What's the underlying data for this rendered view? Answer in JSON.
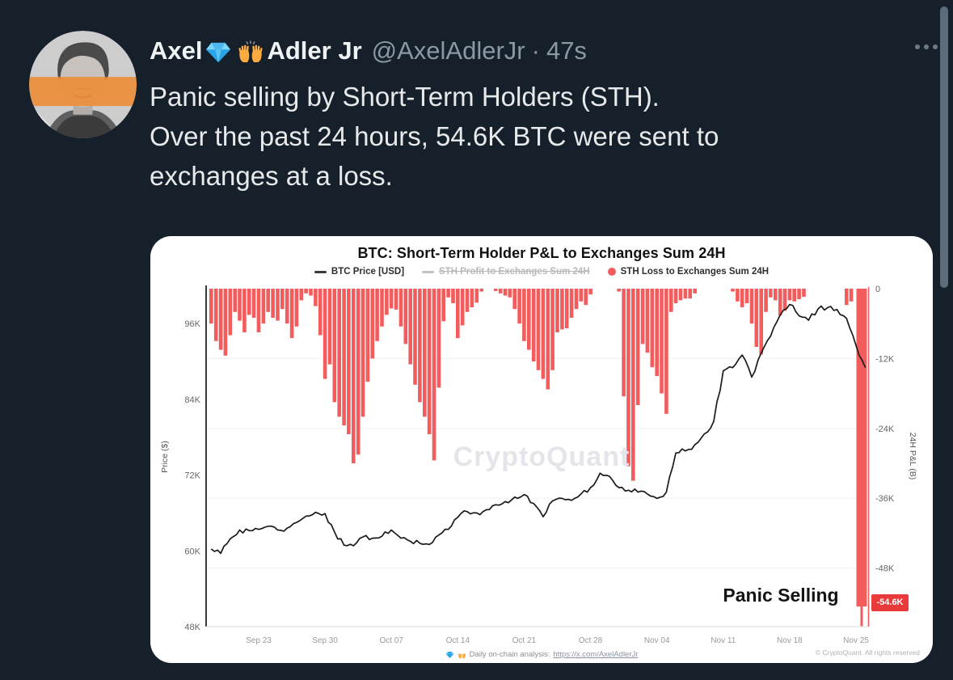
{
  "page": {
    "background": "#15202b"
  },
  "tweet": {
    "display_name_first": "Axel",
    "display_name_rest": "Adler Jr",
    "handle": "@AxelAdlerJr",
    "separator": "·",
    "timestamp": "47s",
    "body_lines": [
      "Panic selling by Short-Term Holders (STH).",
      "Over the past 24 hours, 54.6K BTC were sent to",
      "exchanges at a loss."
    ]
  },
  "chart_data": {
    "type": "bar+line",
    "title": "BTC: Short-Term Holder P&L to Exchanges Sum 24H",
    "legend": [
      {
        "label": "BTC Price [USD]",
        "marker": "dash",
        "color": "#3a3a3a",
        "disabled": false
      },
      {
        "label": "STH Profit to Exchanges Sum 24H",
        "marker": "dash",
        "color": "#c2c2c2",
        "disabled": true
      },
      {
        "label": "STH Loss to Exchanges Sum 24H",
        "marker": "dot",
        "color": "#f25c5c",
        "disabled": false
      }
    ],
    "left_axis": {
      "title": "Price ($)",
      "ticks": [
        {
          "label": "96K",
          "value": 96
        },
        {
          "label": "84K",
          "value": 84
        },
        {
          "label": "72K",
          "value": 72
        },
        {
          "label": "60K",
          "value": 60
        },
        {
          "label": "48K",
          "value": 48
        }
      ]
    },
    "right_axis": {
      "title": "24H P&L (B)",
      "ticks": [
        {
          "label": "0",
          "value": 0
        },
        {
          "label": "-12K",
          "value": -12
        },
        {
          "label": "-24K",
          "value": -24
        },
        {
          "label": "-36K",
          "value": -36
        },
        {
          "label": "-48K",
          "value": -48
        }
      ]
    },
    "x_axis": {
      "start_date": "Sep 18",
      "labels": [
        {
          "label": "Sep 23",
          "day": 5
        },
        {
          "label": "Sep 30",
          "day": 12
        },
        {
          "label": "Oct 07",
          "day": 19
        },
        {
          "label": "Oct 14",
          "day": 26
        },
        {
          "label": "Oct 21",
          "day": 33
        },
        {
          "label": "Oct 28",
          "day": 40
        },
        {
          "label": "Nov 04",
          "day": 47
        },
        {
          "label": "Nov 11",
          "day": 54
        },
        {
          "label": "Nov 18",
          "day": 61
        },
        {
          "label": "Nov 25",
          "day": 68
        }
      ]
    },
    "price_line": {
      "name": "BTC Price [USD]",
      "unit": "K USD per day from Sep 18",
      "values_by_day": [
        60.3,
        59.6,
        61.9,
        63.3,
        63.2,
        63.4,
        63.9,
        63.3,
        63.6,
        64.5,
        65.5,
        66.1,
        65.9,
        63.0,
        60.9,
        60.8,
        62.2,
        62.0,
        62.3,
        63.3,
        62.0,
        61.5,
        61.2,
        61.0,
        62.5,
        63.4,
        65.3,
        66.2,
        66.0,
        66.5,
        67.3,
        67.8,
        68.5,
        68.9,
        67.5,
        65.4,
        67.9,
        68.3,
        68.0,
        69.0,
        70.0,
        72.3,
        71.8,
        70.0,
        69.6,
        69.3,
        69.0,
        68.3,
        69.3,
        75.5,
        75.8,
        76.8,
        78.5,
        80.5,
        88.5,
        89.0,
        91.0,
        87.5,
        91.3,
        94.0,
        97.3,
        99.0,
        97.2,
        96.5,
        98.3,
        98.5,
        98.2,
        96.8,
        92.5,
        89.0
      ]
    },
    "loss_bars": {
      "name": "STH Loss to Exchanges Sum 24H",
      "unit": "K BTC, [day, value] half-day steps",
      "points": [
        [
          0,
          -6
        ],
        [
          0.5,
          -9
        ],
        [
          1,
          -10.5
        ],
        [
          1.5,
          -11.5
        ],
        [
          2,
          -8
        ],
        [
          2.5,
          -4
        ],
        [
          3,
          -5.5
        ],
        [
          3.5,
          -7.5
        ],
        [
          4,
          -4.5
        ],
        [
          4.5,
          -5
        ],
        [
          5,
          -7.5
        ],
        [
          5.5,
          -6
        ],
        [
          6,
          -4
        ],
        [
          6.5,
          -5
        ],
        [
          7,
          -5.5
        ],
        [
          7.5,
          -3.5
        ],
        [
          8,
          -6
        ],
        [
          8.5,
          -8.5
        ],
        [
          9,
          -6.5
        ],
        [
          9.5,
          -2
        ],
        [
          10,
          -0.8
        ],
        [
          10.5,
          -1.2
        ],
        [
          11,
          -3
        ],
        [
          11.5,
          -8
        ],
        [
          12,
          -15.5
        ],
        [
          12.5,
          -13
        ],
        [
          13,
          -19.5
        ],
        [
          13.5,
          -22
        ],
        [
          14,
          -23.5
        ],
        [
          14.5,
          -25
        ],
        [
          15,
          -30
        ],
        [
          15.5,
          -28.5
        ],
        [
          16,
          -22
        ],
        [
          16.5,
          -16
        ],
        [
          17,
          -12
        ],
        [
          17.5,
          -9
        ],
        [
          18,
          -6.5
        ],
        [
          18.5,
          -4.5
        ],
        [
          19,
          -3.4
        ],
        [
          19.5,
          -3.6
        ],
        [
          20,
          -6.5
        ],
        [
          20.5,
          -9.5
        ],
        [
          21,
          -13
        ],
        [
          21.5,
          -16.5
        ],
        [
          22,
          -19.5
        ],
        [
          22.5,
          -22
        ],
        [
          23,
          -25
        ],
        [
          23.5,
          -29.5
        ],
        [
          24,
          -17
        ],
        [
          24.5,
          -5.6
        ],
        [
          25,
          -1.5
        ],
        [
          25.5,
          -2.5
        ],
        [
          26,
          -8.5
        ],
        [
          26.5,
          -6.3
        ],
        [
          27,
          -4
        ],
        [
          27.5,
          -3.2
        ],
        [
          28,
          -2.4
        ],
        [
          28.5,
          -0.5
        ],
        [
          29,
          0
        ],
        [
          29.5,
          0
        ],
        [
          30,
          -0.4
        ],
        [
          30.5,
          -0.8
        ],
        [
          31,
          -1.2
        ],
        [
          31.5,
          -1.5
        ],
        [
          32,
          -3.5
        ],
        [
          32.5,
          -6
        ],
        [
          33,
          -9
        ],
        [
          33.5,
          -10.5
        ],
        [
          34,
          -12.5
        ],
        [
          34.5,
          -14
        ],
        [
          35,
          -15.5
        ],
        [
          35.5,
          -17.3
        ],
        [
          36,
          -14
        ],
        [
          36.5,
          -7.5
        ],
        [
          37,
          -7
        ],
        [
          37.5,
          -6.8
        ],
        [
          38,
          -5
        ],
        [
          38.5,
          -3.5
        ],
        [
          39,
          -2.2
        ],
        [
          39.5,
          -2.8
        ],
        [
          40,
          -1
        ],
        [
          40.5,
          0
        ],
        [
          41,
          0
        ],
        [
          41.5,
          0
        ],
        [
          42,
          0
        ],
        [
          42.5,
          0
        ],
        [
          43,
          -0.5
        ],
        [
          43.5,
          -18.5
        ],
        [
          44,
          -30.5
        ],
        [
          44.5,
          -33
        ],
        [
          45,
          -20
        ],
        [
          45.5,
          -9.5
        ],
        [
          46,
          -11
        ],
        [
          46.5,
          -13.5
        ],
        [
          47,
          -15
        ],
        [
          47.5,
          -18
        ],
        [
          48,
          -21.5
        ],
        [
          48.5,
          -4
        ],
        [
          49,
          -2.5
        ],
        [
          49.5,
          -2
        ],
        [
          50,
          -1.7
        ],
        [
          50.5,
          -1.7
        ],
        [
          51,
          -0.8
        ],
        [
          51.5,
          0
        ],
        [
          52,
          0
        ],
        [
          52.5,
          0
        ],
        [
          53,
          0
        ],
        [
          53.5,
          0
        ],
        [
          54,
          0
        ],
        [
          54.5,
          0
        ],
        [
          55,
          -0.5
        ],
        [
          55.5,
          -2.2
        ],
        [
          56,
          -3.2
        ],
        [
          56.5,
          -2.5
        ],
        [
          57,
          -6
        ],
        [
          57.5,
          -10
        ],
        [
          58,
          -11.3
        ],
        [
          58.5,
          -4
        ],
        [
          59,
          -1.5
        ],
        [
          59.5,
          -2
        ],
        [
          60,
          -4.6
        ],
        [
          60.5,
          -3.8
        ],
        [
          61,
          -2
        ],
        [
          61.5,
          -2.2
        ],
        [
          62,
          -1.8
        ],
        [
          62.5,
          -1.4
        ],
        [
          63,
          0
        ],
        [
          63.5,
          0
        ],
        [
          64,
          0
        ],
        [
          64.5,
          0
        ],
        [
          65,
          0
        ],
        [
          65.5,
          0
        ],
        [
          66,
          0
        ],
        [
          66.5,
          0
        ],
        [
          67,
          -2.8
        ],
        [
          67.5,
          -2.2
        ]
      ],
      "final_bar": {
        "day": 68.6,
        "value": -54.6,
        "label": "-54.6K"
      }
    },
    "ylim_price": [
      48,
      101.5
    ],
    "ylim_pnl": [
      -58,
      0
    ],
    "grid": true,
    "annotation": "Panic Selling",
    "watermark": "CryptoQuant",
    "badge": {
      "label": "-54.6K",
      "color": "#e83a3a"
    },
    "footer_note": "Daily on-chain analysis:",
    "footer_link": "https://x.com/AxelAdlerJr",
    "copyright": "© CryptoQuant. All rights reserved",
    "colors": {
      "bar": "#f25c5c",
      "line": "#1a1a1a",
      "grid": "#f3f3f6",
      "axis": "#3a3a3a",
      "tick_text": "#666666",
      "x_text": "#999999"
    }
  }
}
